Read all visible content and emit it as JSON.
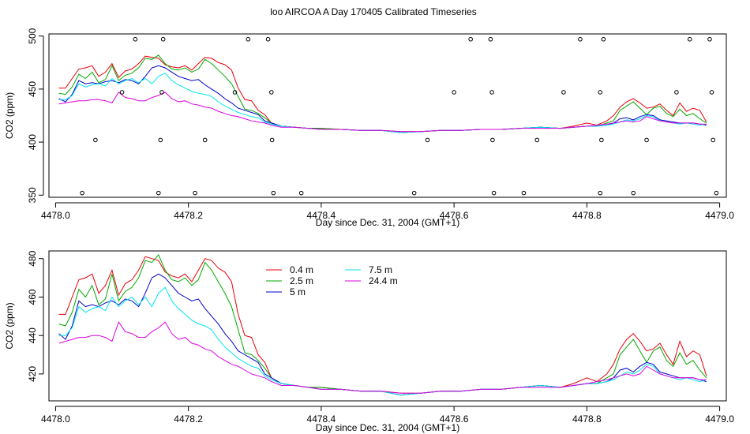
{
  "title": "loo AIRCOA A  Day 170405  Calibrated Timeseries",
  "chart_data": [
    {
      "type": "line",
      "panel": "top",
      "xlabel": "Day since Dec. 31, 2004 (GMT+1)",
      "ylabel": "CO2 (ppm)",
      "xlim": [
        4477.99,
        4479.01
      ],
      "ylim": [
        348,
        502
      ],
      "xticks": [
        4478.0,
        4478.2,
        4478.4,
        4478.6,
        4478.8,
        4479.0
      ],
      "xtick_labels": [
        "4478.0",
        "4478.2",
        "4478.4",
        "4478.6",
        "4478.8",
        "4479.0"
      ],
      "yticks": [
        350,
        400,
        450,
        500
      ],
      "ytick_labels": [
        "350",
        "400",
        "450",
        "500"
      ],
      "scatter_points": [
        {
          "x": 4478.04,
          "y": 352
        },
        {
          "x": 4478.06,
          "y": 402
        },
        {
          "x": 4478.1,
          "y": 447
        },
        {
          "x": 4478.12,
          "y": 497
        },
        {
          "x": 4478.155,
          "y": 352
        },
        {
          "x": 4478.158,
          "y": 402
        },
        {
          "x": 4478.16,
          "y": 447
        },
        {
          "x": 4478.162,
          "y": 497
        },
        {
          "x": 4478.21,
          "y": 352
        },
        {
          "x": 4478.225,
          "y": 402
        },
        {
          "x": 4478.27,
          "y": 447
        },
        {
          "x": 4478.29,
          "y": 497
        },
        {
          "x": 4478.32,
          "y": 497
        },
        {
          "x": 4478.325,
          "y": 447
        },
        {
          "x": 4478.326,
          "y": 402
        },
        {
          "x": 4478.328,
          "y": 352
        },
        {
          "x": 4478.37,
          "y": 352
        },
        {
          "x": 4478.54,
          "y": 352
        },
        {
          "x": 4478.56,
          "y": 402
        },
        {
          "x": 4478.6,
          "y": 447
        },
        {
          "x": 4478.625,
          "y": 497
        },
        {
          "x": 4478.655,
          "y": 497
        },
        {
          "x": 4478.657,
          "y": 447
        },
        {
          "x": 4478.658,
          "y": 402
        },
        {
          "x": 4478.66,
          "y": 352
        },
        {
          "x": 4478.705,
          "y": 352
        },
        {
          "x": 4478.725,
          "y": 402
        },
        {
          "x": 4478.765,
          "y": 447
        },
        {
          "x": 4478.79,
          "y": 497
        },
        {
          "x": 4478.82,
          "y": 447
        },
        {
          "x": 4478.822,
          "y": 402
        },
        {
          "x": 4478.82,
          "y": 352
        },
        {
          "x": 4478.825,
          "y": 497
        },
        {
          "x": 4478.87,
          "y": 352
        },
        {
          "x": 4478.89,
          "y": 402
        },
        {
          "x": 4478.935,
          "y": 447
        },
        {
          "x": 4478.955,
          "y": 497
        },
        {
          "x": 4478.985,
          "y": 497
        },
        {
          "x": 4478.988,
          "y": 447
        },
        {
          "x": 4478.99,
          "y": 402
        },
        {
          "x": 4478.995,
          "y": 352
        }
      ]
    },
    {
      "type": "line",
      "panel": "bottom",
      "xlabel": "Day since Dec. 31, 2004 (GMT+1)",
      "ylabel": "CO2 (ppm)",
      "xlim": [
        4477.99,
        4479.01
      ],
      "ylim": [
        406,
        484
      ],
      "xticks": [
        4478.0,
        4478.2,
        4478.4,
        4478.6,
        4478.8,
        4479.0
      ],
      "xtick_labels": [
        "4478.0",
        "4478.2",
        "4478.4",
        "4478.6",
        "4478.8",
        "4479.0"
      ],
      "yticks": [
        420,
        440,
        460,
        480
      ],
      "ytick_labels": [
        "420",
        "440",
        "460",
        "480"
      ],
      "legend": [
        {
          "name": "0.4 m",
          "color": "#e8000b"
        },
        {
          "name": "7.5 m",
          "color": "#00e5ee"
        },
        {
          "name": "2.5 m",
          "color": "#00aa00"
        },
        {
          "name": "24.4 m",
          "color": "#dd00dd"
        },
        {
          "name": "5 m",
          "color": "#0000cc"
        }
      ]
    }
  ],
  "series_x": [
    4478.005,
    4478.015,
    4478.025,
    4478.035,
    4478.045,
    4478.055,
    4478.065,
    4478.075,
    4478.085,
    4478.095,
    4478.105,
    4478.115,
    4478.125,
    4478.135,
    4478.145,
    4478.155,
    4478.165,
    4478.175,
    4478.185,
    4478.195,
    4478.205,
    4478.215,
    4478.225,
    4478.235,
    4478.245,
    4478.255,
    4478.265,
    4478.275,
    4478.285,
    4478.295,
    4478.305,
    4478.315,
    4478.325,
    4478.34,
    4478.36,
    4478.38,
    4478.4,
    4478.43,
    4478.46,
    4478.49,
    4478.52,
    4478.55,
    4478.58,
    4478.61,
    4478.64,
    4478.67,
    4478.7,
    4478.73,
    4478.76,
    4478.78,
    4478.8,
    4478.815,
    4478.83,
    4478.84,
    4478.85,
    4478.86,
    4478.87,
    4478.88,
    4478.89,
    4478.9,
    4478.91,
    4478.92,
    4478.93,
    4478.94,
    4478.95,
    4478.96,
    4478.97,
    4478.98
  ],
  "series": [
    {
      "name": "0.4 m",
      "color": "#e8000b",
      "values": [
        451,
        451,
        460,
        469,
        470,
        472,
        462,
        466,
        474,
        461,
        467,
        469,
        474,
        481,
        480,
        479,
        473,
        471,
        470,
        472,
        468,
        474,
        480,
        479,
        475,
        473,
        468,
        451,
        440,
        439,
        430,
        426,
        418,
        415,
        414,
        413,
        413,
        412,
        411,
        411,
        410,
        410,
        411,
        411,
        412,
        412,
        413,
        414,
        413,
        415,
        418,
        416,
        420,
        425,
        433,
        438,
        441,
        437,
        432,
        433,
        436,
        430,
        425,
        437,
        429,
        432,
        430,
        419
      ]
    },
    {
      "name": "2.5 m",
      "color": "#00aa00",
      "values": [
        446,
        445,
        452,
        464,
        460,
        466,
        456,
        459,
        472,
        458,
        463,
        465,
        470,
        479,
        478,
        482,
        474,
        469,
        468,
        470,
        466,
        469,
        478,
        474,
        468,
        462,
        455,
        443,
        431,
        430,
        427,
        423,
        418,
        415,
        414,
        413,
        413,
        412,
        411,
        411,
        409,
        410,
        411,
        411,
        412,
        412,
        413,
        414,
        413,
        414,
        415,
        415,
        418,
        420,
        430,
        434,
        438,
        432,
        426,
        432,
        434,
        427,
        424,
        431,
        425,
        427,
        422,
        418
      ]
    },
    {
      "name": "5 m",
      "color": "#0000cc",
      "values": [
        441,
        438,
        445,
        458,
        455,
        456,
        455,
        457,
        458,
        456,
        459,
        458,
        455,
        462,
        470,
        472,
        470,
        466,
        462,
        460,
        458,
        459,
        454,
        450,
        446,
        441,
        437,
        432,
        430,
        428,
        426,
        420,
        418,
        415,
        414,
        413,
        412,
        412,
        411,
        411,
        409,
        410,
        411,
        411,
        412,
        412,
        413,
        414,
        413,
        414,
        415,
        415,
        416,
        418,
        422,
        423,
        421,
        424,
        426,
        425,
        421,
        420,
        419,
        418,
        418,
        418,
        417,
        416
      ]
    },
    {
      "name": "7.5 m",
      "color": "#00e5ee",
      "values": [
        440,
        440,
        444,
        455,
        452,
        454,
        455,
        453,
        460,
        455,
        458,
        460,
        456,
        460,
        455,
        462,
        465,
        458,
        454,
        451,
        448,
        446,
        445,
        443,
        438,
        434,
        431,
        428,
        426,
        424,
        423,
        419,
        417,
        415,
        414,
        413,
        412,
        412,
        411,
        411,
        409,
        410,
        411,
        411,
        412,
        412,
        413,
        414,
        413,
        414,
        415,
        415,
        416,
        417,
        419,
        421,
        420,
        422,
        425,
        424,
        420,
        419,
        418,
        417,
        418,
        417,
        416,
        417
      ]
    },
    {
      "name": "24.4 m",
      "color": "#dd00dd",
      "values": [
        436,
        437,
        438,
        439,
        439,
        440,
        440,
        439,
        437,
        447,
        442,
        441,
        439,
        439,
        442,
        444,
        447,
        441,
        438,
        439,
        436,
        435,
        433,
        432,
        429,
        427,
        425,
        424,
        422,
        420,
        419,
        418,
        416,
        414,
        414,
        413,
        412,
        412,
        411,
        411,
        410,
        410,
        411,
        411,
        412,
        412,
        413,
        413,
        413,
        414,
        415,
        416,
        417,
        418,
        419,
        420,
        419,
        420,
        424,
        422,
        420,
        419,
        418,
        418,
        418,
        418,
        417,
        417
      ]
    }
  ]
}
